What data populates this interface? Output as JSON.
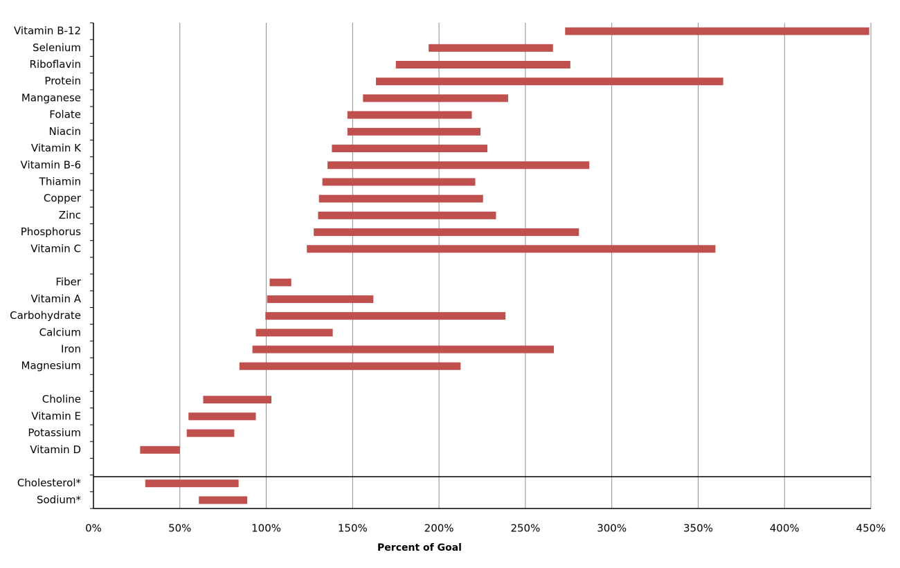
{
  "chart_data": {
    "type": "floating-bar",
    "orientation": "horizontal",
    "x_label": "Percent of Goal",
    "color": "#c0504d",
    "grid": true,
    "xlim": [
      0,
      450
    ],
    "xticks": [
      {
        "value": 0,
        "label": "0%"
      },
      {
        "value": 50,
        "label": "50%"
      },
      {
        "value": 100,
        "label": "100%"
      },
      {
        "value": 150,
        "label": "150%"
      },
      {
        "value": 200,
        "label": "200%"
      },
      {
        "value": 250,
        "label": "250%"
      },
      {
        "value": 300,
        "label": "300%"
      },
      {
        "value": 350,
        "label": "350%"
      },
      {
        "value": 400,
        "label": "400%"
      },
      {
        "value": 450,
        "label": "450%"
      }
    ],
    "categories": [
      "Vitamin B-12",
      "Selenium",
      "Riboflavin",
      "Protein",
      "Manganese",
      "Folate",
      "Niacin",
      "Vitamin K",
      "Vitamin B-6",
      "Thiamin",
      "Copper",
      "Zinc",
      "Phosphorus",
      "Vitamin C",
      null,
      "Fiber",
      "Vitamin A",
      "Carbohydrate",
      "Calcium",
      "Iron",
      "Magnesium",
      null,
      "Choline",
      "Vitamin E",
      "Potassium",
      "Vitamin D",
      null,
      "Cholesterol*",
      "Sodium*"
    ],
    "values": [
      [
        273,
        449
      ],
      [
        194,
        266
      ],
      [
        175,
        276
      ],
      [
        163.5,
        364.5
      ],
      [
        156,
        240
      ],
      [
        147,
        219
      ],
      [
        147,
        224
      ],
      [
        138,
        228
      ],
      [
        135.5,
        287
      ],
      [
        132.5,
        221
      ],
      [
        130.5,
        225.5
      ],
      [
        130,
        233
      ],
      [
        127.5,
        281
      ],
      [
        123.5,
        360
      ],
      null,
      [
        102,
        114.5
      ],
      [
        100.5,
        162
      ],
      [
        99.5,
        238.5
      ],
      [
        94,
        138.5
      ],
      [
        92,
        266.5
      ],
      [
        84.5,
        212.5
      ],
      null,
      [
        63.5,
        103
      ],
      [
        55,
        94
      ],
      [
        54,
        81.5
      ],
      [
        27,
        50
      ],
      null,
      [
        30,
        84
      ],
      [
        61,
        89
      ]
    ]
  }
}
